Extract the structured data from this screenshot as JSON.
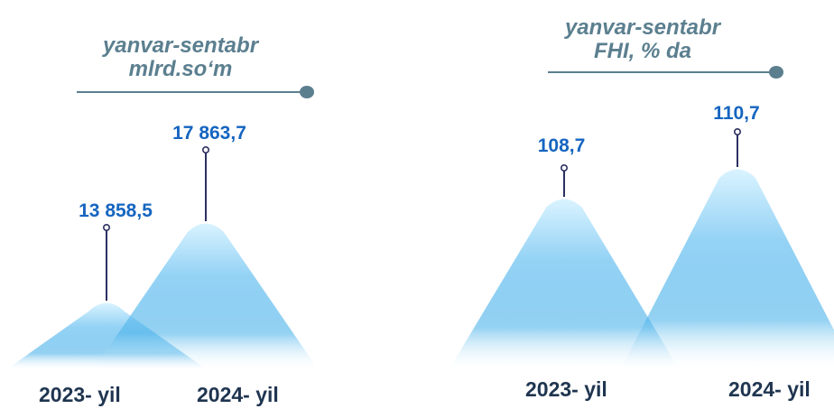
{
  "colors": {
    "peak_top": "#d6f2ff",
    "peak_mid": "#8ccff4",
    "peak_base": "#4db3ea",
    "leader": "#2c3060",
    "title_line": "#5b7f8f",
    "value_text": "#1565c0",
    "year_text": "#1f3550"
  },
  "chart_data": [
    {
      "type": "area",
      "title": "yanvar-sentabr",
      "subtitle": "mlrd.so‘m",
      "categories": [
        "2023- yil",
        "2024- yil"
      ],
      "values": [
        13858.5,
        17863.7
      ],
      "data_labels": [
        "13 858,5",
        "17 863,7"
      ],
      "ylim": [
        0,
        20000
      ],
      "grid": false,
      "legend": "none"
    },
    {
      "type": "area",
      "title": "yanvar-sentabr",
      "subtitle": "FHI, % da",
      "categories": [
        "2023- yil",
        "2024- yil"
      ],
      "values": [
        108.7,
        110.7
      ],
      "data_labels": [
        "108,7",
        "110,7"
      ],
      "ylim": [
        100,
        112
      ],
      "grid": false,
      "legend": "none"
    }
  ]
}
